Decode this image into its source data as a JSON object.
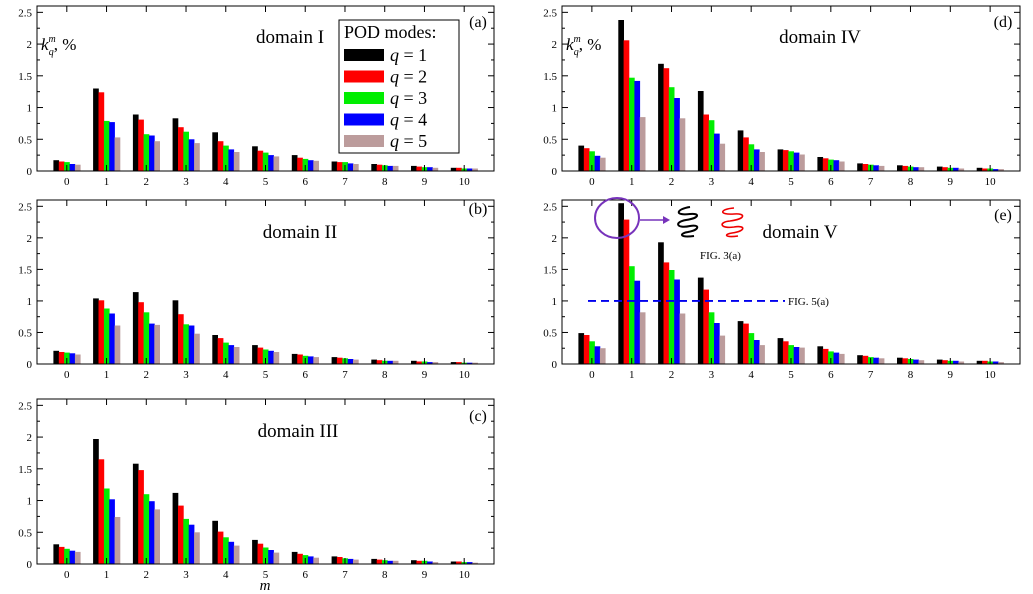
{
  "figure": {
    "ylabel_base": "k",
    "ylabel_sup": "m",
    "ylabel_sub": "q",
    "ylabel_unit": ", %",
    "xlabel": "m",
    "yticks": [
      "0",
      "0.5",
      "1",
      "1.5",
      "2",
      "2.5"
    ],
    "xticks": [
      "0",
      "1",
      "2",
      "3",
      "4",
      "5",
      "6",
      "7",
      "8",
      "9",
      "10"
    ]
  },
  "legend": {
    "title": "POD  modes:",
    "entries": [
      {
        "prefix": "q",
        "text": " = 1",
        "color": "#000000"
      },
      {
        "prefix": "q",
        "text": " = 2",
        "color": "#ff0000"
      },
      {
        "prefix": "q",
        "text": " = 3",
        "color": "#00ee00"
      },
      {
        "prefix": "q",
        "text": " = 4",
        "color": "#0000ff"
      },
      {
        "prefix": "q",
        "text": " = 5",
        "color": "#bc9c9c"
      }
    ]
  },
  "annotations": {
    "fig3_label": "FIG. 3(a)",
    "fig5_label": "FIG. 5(a)",
    "fig5_level": 1.0,
    "circle_color": "#7733bb",
    "line_color": "#0000ee"
  },
  "chart_data": [
    {
      "type": "bar",
      "panel": "(a)",
      "title": "domain I",
      "categories": [
        0,
        1,
        2,
        3,
        4,
        5,
        6,
        7,
        8,
        9,
        10
      ],
      "ylim": [
        0,
        2.6
      ],
      "grid": false,
      "series": [
        {
          "name": "q = 1",
          "values": [
            0.17,
            1.3,
            0.89,
            0.83,
            0.61,
            0.39,
            0.25,
            0.15,
            0.11,
            0.08,
            0.05
          ]
        },
        {
          "name": "q = 2",
          "values": [
            0.15,
            1.24,
            0.81,
            0.69,
            0.47,
            0.32,
            0.21,
            0.14,
            0.1,
            0.07,
            0.05
          ]
        },
        {
          "name": "q = 3",
          "values": [
            0.14,
            0.79,
            0.58,
            0.62,
            0.4,
            0.29,
            0.19,
            0.14,
            0.09,
            0.06,
            0.04
          ]
        },
        {
          "name": "q = 4",
          "values": [
            0.11,
            0.77,
            0.56,
            0.5,
            0.34,
            0.25,
            0.17,
            0.12,
            0.08,
            0.06,
            0.04
          ]
        },
        {
          "name": "q = 5",
          "values": [
            0.1,
            0.53,
            0.47,
            0.44,
            0.3,
            0.23,
            0.16,
            0.11,
            0.08,
            0.05,
            0.04
          ]
        }
      ]
    },
    {
      "type": "bar",
      "panel": "(b)",
      "title": "domain II",
      "categories": [
        0,
        1,
        2,
        3,
        4,
        5,
        6,
        7,
        8,
        9,
        10
      ],
      "ylim": [
        0,
        2.6
      ],
      "grid": false,
      "series": [
        {
          "name": "q = 1",
          "values": [
            0.21,
            1.04,
            1.14,
            1.01,
            0.46,
            0.3,
            0.16,
            0.11,
            0.07,
            0.05,
            0.03
          ]
        },
        {
          "name": "q = 2",
          "values": [
            0.19,
            1.01,
            0.98,
            0.79,
            0.41,
            0.26,
            0.15,
            0.1,
            0.06,
            0.04,
            0.03
          ]
        },
        {
          "name": "q = 3",
          "values": [
            0.18,
            0.88,
            0.82,
            0.63,
            0.34,
            0.23,
            0.13,
            0.09,
            0.05,
            0.04,
            0.02
          ]
        },
        {
          "name": "q = 4",
          "values": [
            0.17,
            0.8,
            0.64,
            0.61,
            0.3,
            0.21,
            0.12,
            0.08,
            0.05,
            0.03,
            0.02
          ]
        },
        {
          "name": "q = 5",
          "values": [
            0.15,
            0.61,
            0.62,
            0.48,
            0.27,
            0.19,
            0.11,
            0.07,
            0.05,
            0.03,
            0.02
          ]
        }
      ]
    },
    {
      "type": "bar",
      "panel": "(c)",
      "title": "domain III",
      "categories": [
        0,
        1,
        2,
        3,
        4,
        5,
        6,
        7,
        8,
        9,
        10
      ],
      "ylim": [
        0,
        2.6
      ],
      "grid": false,
      "series": [
        {
          "name": "q = 1",
          "values": [
            0.31,
            1.97,
            1.58,
            1.12,
            0.68,
            0.38,
            0.19,
            0.12,
            0.08,
            0.06,
            0.04
          ]
        },
        {
          "name": "q = 2",
          "values": [
            0.27,
            1.65,
            1.48,
            0.92,
            0.51,
            0.32,
            0.16,
            0.11,
            0.07,
            0.05,
            0.04
          ]
        },
        {
          "name": "q = 3",
          "values": [
            0.24,
            1.19,
            1.1,
            0.71,
            0.42,
            0.26,
            0.14,
            0.09,
            0.06,
            0.05,
            0.03
          ]
        },
        {
          "name": "q = 4",
          "values": [
            0.21,
            1.02,
            0.99,
            0.62,
            0.35,
            0.22,
            0.12,
            0.08,
            0.05,
            0.04,
            0.03
          ]
        },
        {
          "name": "q = 5",
          "values": [
            0.19,
            0.74,
            0.86,
            0.5,
            0.29,
            0.18,
            0.1,
            0.07,
            0.05,
            0.03,
            0.02
          ]
        }
      ]
    },
    {
      "type": "bar",
      "panel": "(d)",
      "title": "domain IV",
      "categories": [
        0,
        1,
        2,
        3,
        4,
        5,
        6,
        7,
        8,
        9,
        10
      ],
      "ylim": [
        0,
        2.6
      ],
      "grid": false,
      "series": [
        {
          "name": "q = 1",
          "values": [
            0.4,
            2.38,
            1.69,
            1.26,
            0.64,
            0.34,
            0.22,
            0.12,
            0.09,
            0.07,
            0.05
          ]
        },
        {
          "name": "q = 2",
          "values": [
            0.36,
            2.06,
            1.62,
            0.89,
            0.53,
            0.33,
            0.2,
            0.11,
            0.08,
            0.06,
            0.04
          ]
        },
        {
          "name": "q = 3",
          "values": [
            0.31,
            1.47,
            1.32,
            0.8,
            0.42,
            0.31,
            0.18,
            0.1,
            0.07,
            0.05,
            0.04
          ]
        },
        {
          "name": "q = 4",
          "values": [
            0.24,
            1.42,
            1.15,
            0.59,
            0.34,
            0.29,
            0.17,
            0.09,
            0.06,
            0.05,
            0.03
          ]
        },
        {
          "name": "q = 5",
          "values": [
            0.21,
            0.85,
            0.83,
            0.43,
            0.3,
            0.26,
            0.15,
            0.08,
            0.06,
            0.04,
            0.03
          ]
        }
      ]
    },
    {
      "type": "bar",
      "panel": "(e)",
      "title": "domain V",
      "categories": [
        0,
        1,
        2,
        3,
        4,
        5,
        6,
        7,
        8,
        9,
        10
      ],
      "ylim": [
        0,
        2.6
      ],
      "grid": false,
      "series": [
        {
          "name": "q = 1",
          "values": [
            0.49,
            2.55,
            1.93,
            1.37,
            0.68,
            0.41,
            0.28,
            0.14,
            0.1,
            0.07,
            0.05
          ]
        },
        {
          "name": "q = 2",
          "values": [
            0.46,
            2.29,
            1.61,
            1.18,
            0.64,
            0.36,
            0.24,
            0.13,
            0.09,
            0.06,
            0.05
          ]
        },
        {
          "name": "q = 3",
          "values": [
            0.36,
            1.55,
            1.49,
            0.82,
            0.49,
            0.3,
            0.2,
            0.11,
            0.08,
            0.05,
            0.04
          ]
        },
        {
          "name": "q = 4",
          "values": [
            0.28,
            1.32,
            1.34,
            0.65,
            0.38,
            0.27,
            0.18,
            0.1,
            0.07,
            0.05,
            0.04
          ]
        },
        {
          "name": "q = 5",
          "values": [
            0.25,
            0.82,
            0.8,
            0.45,
            0.3,
            0.26,
            0.16,
            0.09,
            0.06,
            0.04,
            0.03
          ]
        }
      ]
    }
  ]
}
